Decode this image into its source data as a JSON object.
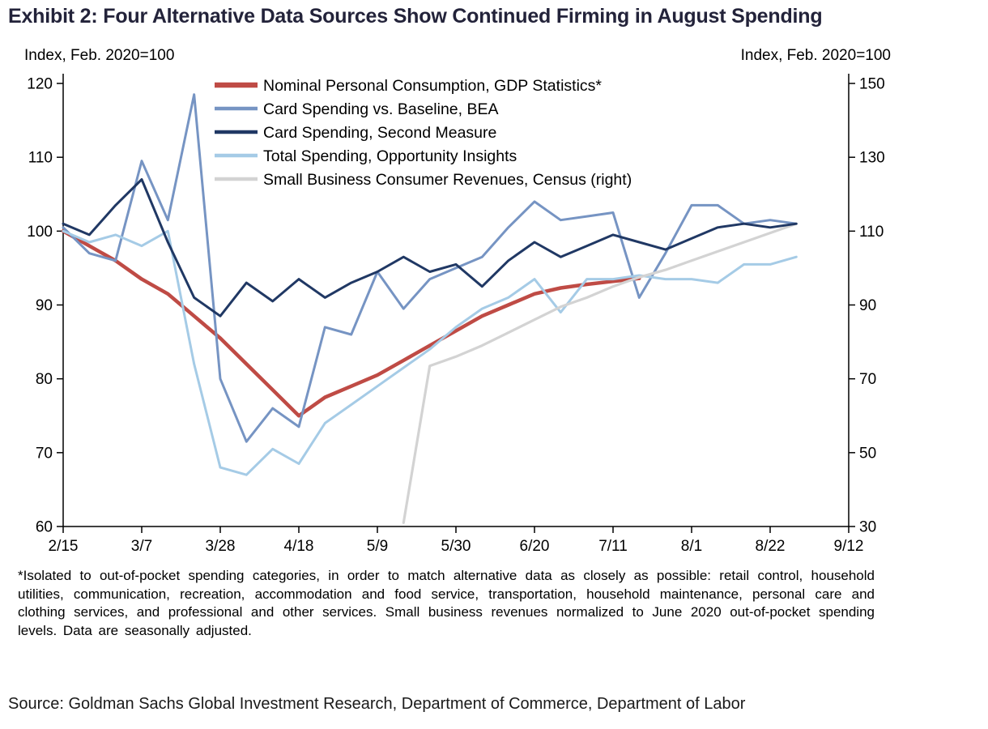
{
  "title": "Exhibit 2: Four Alternative Data Sources Show Continued Firming in August Spending",
  "footnote": "*Isolated to out-of-pocket spending categories, in order to match alternative data as closely as possible: retail control, household utilities, communication, recreation, accommodation and food service, transportation, household maintenance, personal care and clothing services, and professional and other services. Small business revenues normalized to June 2020 out-of-pocket spending levels. Data are seasonally adjusted.",
  "source": "Source: Goldman Sachs Global Investment Research, Department of Commerce, Department of Labor",
  "chart_data": {
    "type": "line",
    "title": "Exhibit 2: Four Alternative Data Sources Show Continued Firming in August Spending",
    "left_axis_title": "Index, Feb. 2020=100",
    "right_axis_title": "Index, Feb. 2020=100",
    "grid": false,
    "legend_position": "top-left-inside",
    "left_axis": {
      "min": 60,
      "max": 120,
      "ticks": [
        120,
        110,
        100,
        90,
        80,
        70,
        60
      ]
    },
    "right_axis": {
      "min": 30,
      "max": 150,
      "ticks": [
        150,
        130,
        110,
        90,
        70,
        50,
        30
      ]
    },
    "x_axis": {
      "unit": "week",
      "weeks_span": 30,
      "tick_weeks": [
        0,
        3,
        6,
        9,
        12,
        15,
        18,
        21,
        24,
        27,
        30
      ],
      "tick_labels": [
        "2/15",
        "3/7",
        "3/28",
        "4/18",
        "5/9",
        "5/30",
        "6/20",
        "7/11",
        "8/1",
        "8/22",
        "9/12"
      ]
    },
    "series": [
      {
        "name": "Nominal Personal Consumption, GDP Statistics*",
        "color": "#bf4b45",
        "width": 4.5,
        "axis": "left",
        "values": [
          100,
          98,
          96,
          93.5,
          91.5,
          88.5,
          85.5,
          82,
          78.5,
          75,
          77.5,
          79,
          80.5,
          82.5,
          84.5,
          86.5,
          88.5,
          90,
          91.5,
          92.3,
          92.8,
          93.2,
          93.6,
          null,
          null,
          null,
          null,
          null,
          null
        ]
      },
      {
        "name": "Card Spending vs. Baseline, BEA",
        "color": "#7694c3",
        "width": 3,
        "axis": "left",
        "values": [
          100.5,
          97,
          96,
          109.5,
          101.5,
          118.5,
          80,
          71.5,
          76,
          73.5,
          87,
          86,
          94.5,
          89.5,
          93.5,
          95,
          96.5,
          100.5,
          104,
          101.5,
          102,
          102.5,
          91,
          97,
          103.5,
          103.5,
          101,
          101.5,
          101
        ]
      },
      {
        "name": "Card Spending, Second Measure",
        "color": "#203864",
        "width": 3,
        "axis": "left",
        "values": [
          101,
          99.5,
          103.5,
          107,
          98.5,
          91,
          88.5,
          93,
          90.5,
          93.5,
          91,
          93,
          94.5,
          96.5,
          94.5,
          95.5,
          92.5,
          96,
          98.5,
          96.5,
          98,
          99.5,
          98.5,
          97.5,
          99,
          100.5,
          101,
          100.5,
          101
        ]
      },
      {
        "name": "Total Spending, Opportunity Insights",
        "color": "#a5cbe6",
        "width": 3,
        "axis": "left",
        "values": [
          100,
          98.5,
          99.5,
          98,
          100,
          82,
          68,
          67,
          70.5,
          68.5,
          74,
          76.5,
          79,
          81.5,
          84,
          87,
          89.5,
          91,
          93.5,
          89,
          93.5,
          93.5,
          94,
          93.5,
          93.5,
          93,
          95.5,
          95.5,
          96.5
        ]
      },
      {
        "name": "Small Business Consumer Revenues, Census (right)",
        "color": "#d3d3d3",
        "width": 3.2,
        "axis": "right",
        "values": [
          null,
          null,
          null,
          null,
          null,
          null,
          null,
          null,
          null,
          null,
          null,
          null,
          null,
          31,
          73.5,
          76,
          79,
          82.5,
          86,
          89.5,
          92,
          95,
          97.5,
          99.5,
          102,
          104.5,
          107,
          109.5,
          112
        ]
      }
    ],
    "legend_order": [
      0,
      1,
      2,
      3,
      4
    ],
    "draw_order": [
      0,
      1,
      3,
      4,
      2
    ]
  }
}
